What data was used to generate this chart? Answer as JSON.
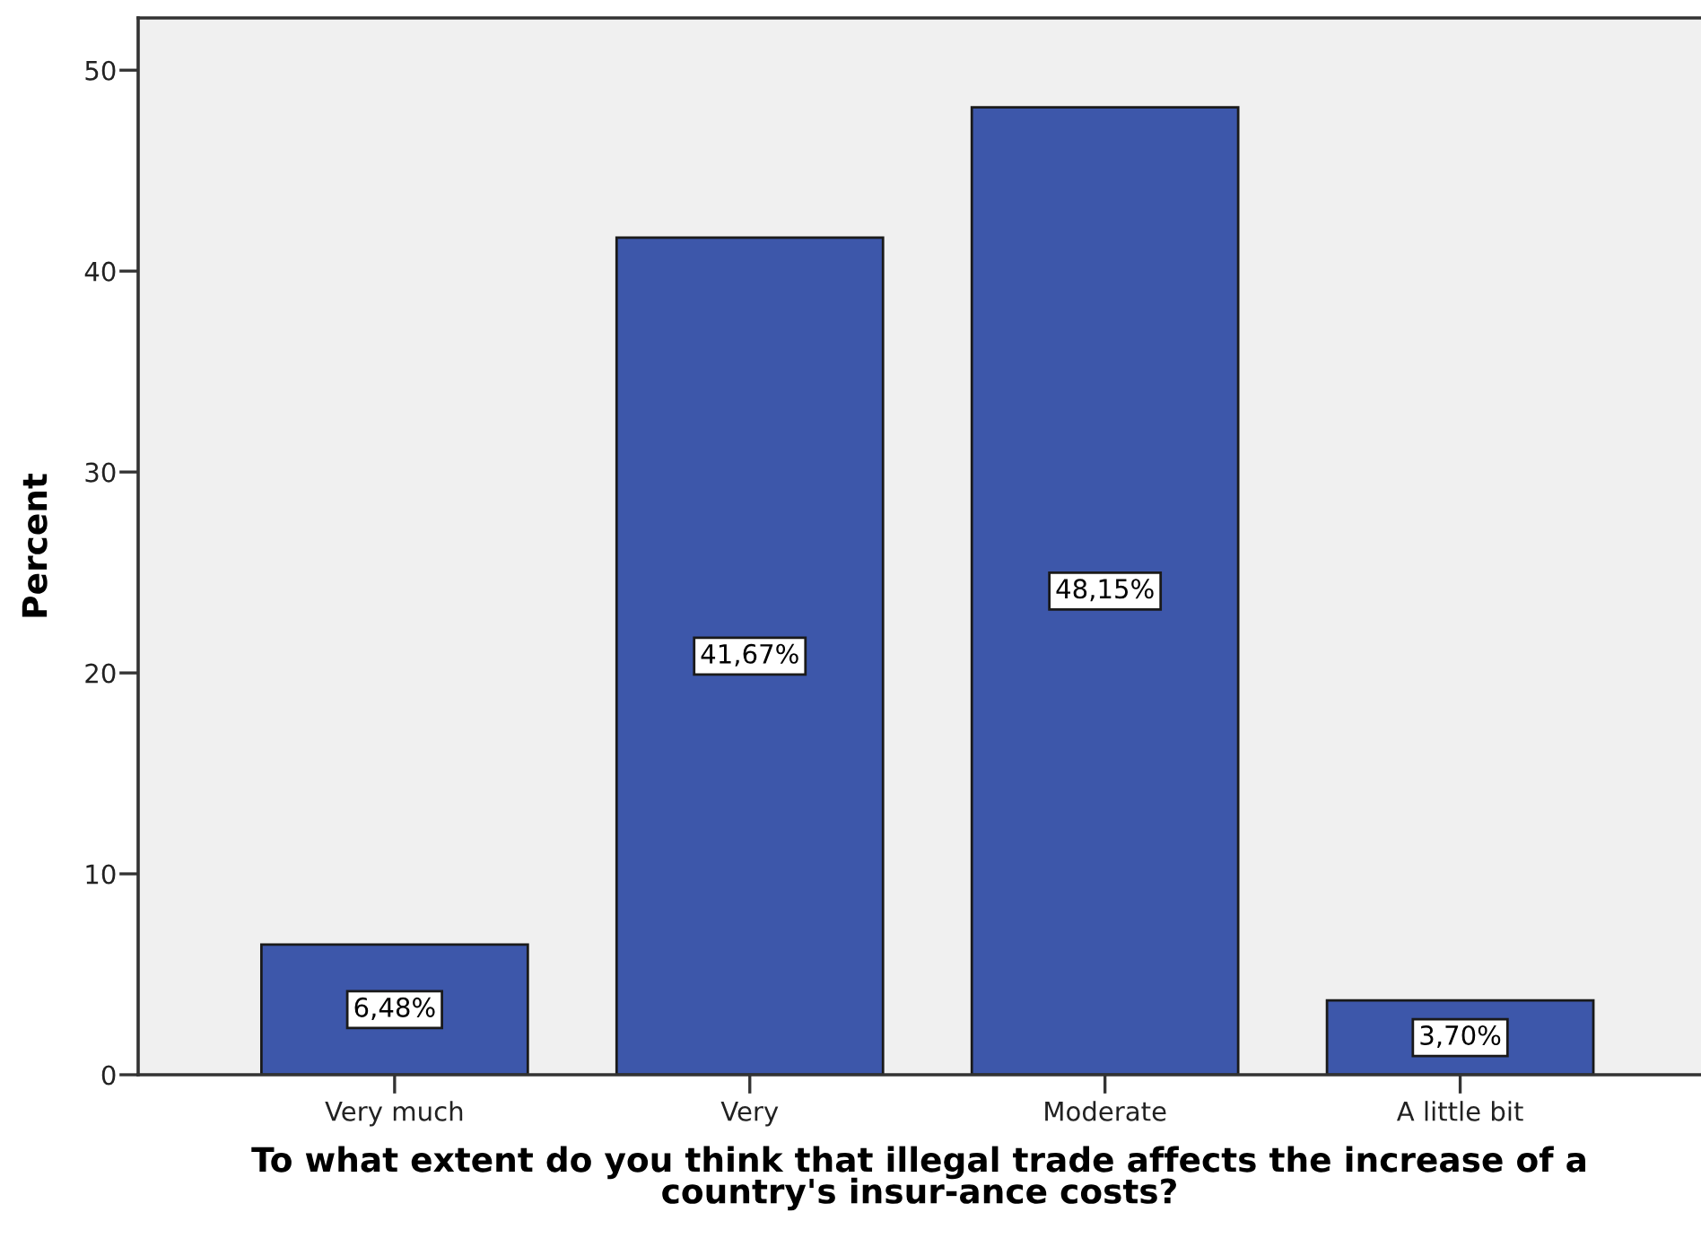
{
  "chart_data": {
    "type": "bar",
    "categories": [
      "Very much",
      "Very",
      "Moderate",
      "A little bit"
    ],
    "values": [
      6.48,
      41.67,
      48.15,
      3.7
    ],
    "value_labels": [
      "6,48%",
      "41,67%",
      "48,15%",
      "3,70%"
    ],
    "color": "#3d57aa",
    "xlabel": "To what extent do you think that illegal trade affects the increase of a\ncountry's insur-ance costs?",
    "ylabel": "Percent",
    "ylim": [
      0,
      52.6
    ],
    "yticks": [
      0,
      10,
      20,
      30,
      40,
      50
    ]
  }
}
